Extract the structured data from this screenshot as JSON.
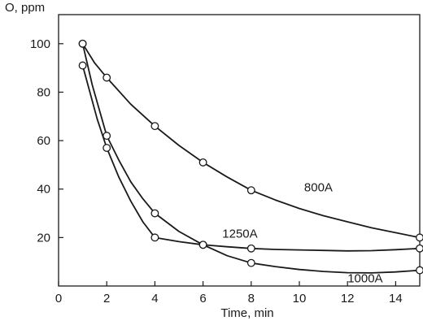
{
  "chart_data": {
    "type": "line",
    "ylabel": "O, ppm",
    "xlabel": "Time, min",
    "xlim": [
      0,
      15
    ],
    "ylim": [
      0,
      112
    ],
    "x_ticks": [
      0,
      2,
      4,
      6,
      8,
      10,
      12,
      14
    ],
    "y_ticks": [
      20,
      40,
      60,
      80,
      100
    ],
    "grid": false,
    "legend": "none",
    "series": [
      {
        "name": "800A",
        "x": [
          1,
          2,
          4,
          6,
          8,
          15
        ],
        "y": [
          100,
          86,
          66,
          51,
          39.5,
          20
        ],
        "curve_points": [
          [
            1,
            100
          ],
          [
            1.5,
            92
          ],
          [
            2,
            86
          ],
          [
            3,
            75
          ],
          [
            4,
            66
          ],
          [
            5,
            58
          ],
          [
            6,
            51
          ],
          [
            7,
            45
          ],
          [
            8,
            39.5
          ],
          [
            9,
            35.5
          ],
          [
            10,
            32
          ],
          [
            11,
            29
          ],
          [
            12,
            26.5
          ],
          [
            13,
            24
          ],
          [
            14,
            22
          ],
          [
            15,
            20
          ]
        ]
      },
      {
        "name": "1250A",
        "x": [
          1,
          2,
          4,
          6,
          8,
          15
        ],
        "y": [
          91,
          57,
          20,
          17,
          15.5,
          15.5
        ],
        "curve_points": [
          [
            1,
            91
          ],
          [
            1.3,
            80
          ],
          [
            1.6,
            69
          ],
          [
            2,
            57
          ],
          [
            2.5,
            45
          ],
          [
            3,
            35
          ],
          [
            3.5,
            26.5
          ],
          [
            4,
            20
          ],
          [
            5,
            18.3
          ],
          [
            6,
            17
          ],
          [
            7,
            16.2
          ],
          [
            8,
            15.5
          ],
          [
            9,
            15.1
          ],
          [
            10,
            14.9
          ],
          [
            11,
            14.7
          ],
          [
            12,
            14.5
          ],
          [
            13,
            14.6
          ],
          [
            14,
            15
          ],
          [
            15,
            15.5
          ]
        ]
      },
      {
        "name": "1000A",
        "x": [
          1,
          2,
          4,
          6,
          8,
          15
        ],
        "y": [
          100,
          62,
          30,
          17,
          9.5,
          6.5
        ],
        "curve_points": [
          [
            1,
            100
          ],
          [
            1.4,
            83
          ],
          [
            2,
            62
          ],
          [
            2.5,
            52
          ],
          [
            3,
            43
          ],
          [
            3.5,
            36
          ],
          [
            4,
            30
          ],
          [
            5,
            22.5
          ],
          [
            6,
            17
          ],
          [
            7,
            12.5
          ],
          [
            8,
            9.5
          ],
          [
            9,
            8
          ],
          [
            10,
            6.8
          ],
          [
            11,
            6
          ],
          [
            12,
            5.5
          ],
          [
            13,
            5.4
          ],
          [
            14,
            5.8
          ],
          [
            15,
            6.5
          ]
        ]
      }
    ],
    "series_labels": [
      {
        "text": "800A",
        "at": [
          10.2,
          39
        ]
      },
      {
        "text": "1250A",
        "at": [
          6.8,
          20
        ]
      },
      {
        "text": "1000A",
        "at": [
          12,
          1.5
        ]
      }
    ]
  }
}
